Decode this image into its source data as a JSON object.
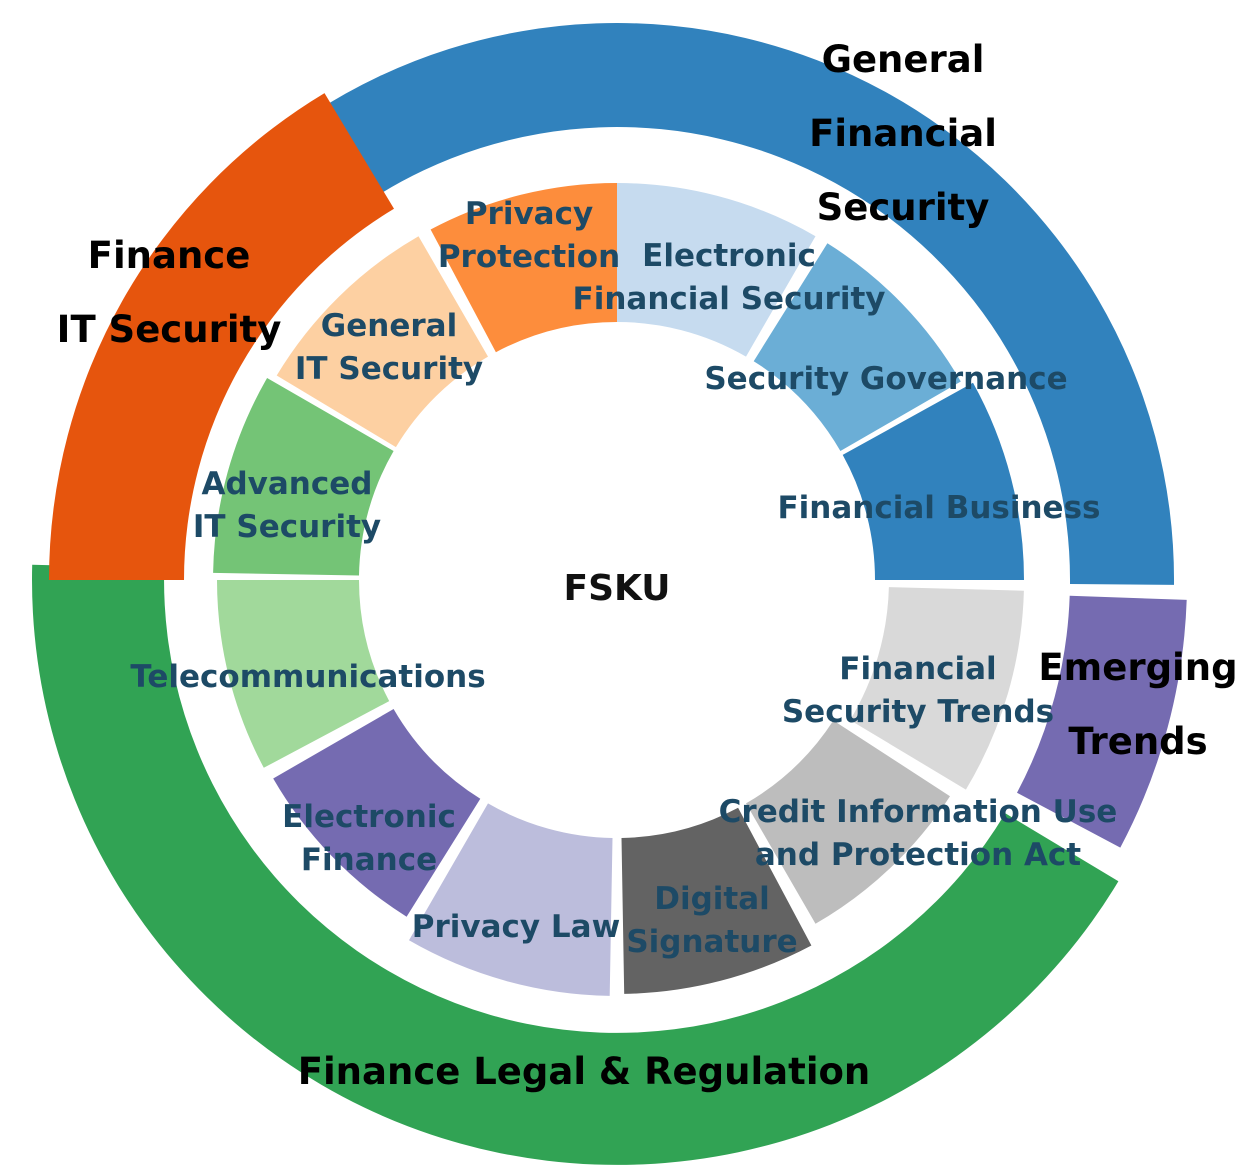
{
  "center": {
    "label": "FSKU"
  },
  "outer_ring": [
    {
      "id": "general-financial-security",
      "lines": [
        "General",
        "Financial",
        "Security"
      ],
      "color": "#3182bd"
    },
    {
      "id": "emerging-trends",
      "lines": [
        "Emerging",
        "Trends"
      ],
      "color": "#756bb1"
    },
    {
      "id": "finance-legal-regulation",
      "lines": [
        "Finance Legal & Regulation"
      ],
      "color": "#31a354"
    },
    {
      "id": "finance-it-security",
      "lines": [
        "Finance",
        "IT Security"
      ],
      "color": "#e6550d"
    }
  ],
  "inner_ring": [
    {
      "id": "electronic-financial-security",
      "lines": [
        "Electronic",
        "Financial Security"
      ],
      "color": "#c6dbef",
      "parent": "General Financial Security"
    },
    {
      "id": "security-governance",
      "lines": [
        "Security Governance"
      ],
      "color": "#6baed6",
      "parent": "General Financial Security"
    },
    {
      "id": "financial-business",
      "lines": [
        "Financial Business"
      ],
      "color": "#3182bd",
      "parent": "General Financial Security"
    },
    {
      "id": "financial-security-trends",
      "lines": [
        "Financial",
        "Security Trends"
      ],
      "color": "#d9d9d9",
      "parent": "Emerging Trends"
    },
    {
      "id": "credit-information-act",
      "lines": [
        "Credit Information Use",
        "and Protection Act"
      ],
      "color": "#bdbdbd",
      "parent": "Finance Legal & Regulation"
    },
    {
      "id": "digital-signature",
      "lines": [
        "Digital",
        "Signature"
      ],
      "color": "#636363",
      "parent": "Finance Legal & Regulation"
    },
    {
      "id": "privacy-law",
      "lines": [
        "Privacy Law"
      ],
      "color": "#bcbddc",
      "parent": "Finance Legal & Regulation"
    },
    {
      "id": "electronic-finance",
      "lines": [
        "Electronic",
        "Finance"
      ],
      "color": "#756bb1",
      "parent": "Finance Legal & Regulation"
    },
    {
      "id": "telecommunications",
      "lines": [
        "Telecommunications"
      ],
      "color": "#a1d99b",
      "parent": "Finance Legal & Regulation"
    },
    {
      "id": "advanced-it-security",
      "lines": [
        "Advanced",
        "IT Security"
      ],
      "color": "#74c476",
      "parent": "Finance IT Security"
    },
    {
      "id": "general-it-security",
      "lines": [
        "General",
        "IT Security"
      ],
      "color": "#fdd0a2",
      "parent": "Finance IT Security"
    },
    {
      "id": "privacy-protection",
      "lines": [
        "Privacy",
        "Protection"
      ],
      "color": "#fd8d3c",
      "parent": "Finance IT Security"
    }
  ]
}
